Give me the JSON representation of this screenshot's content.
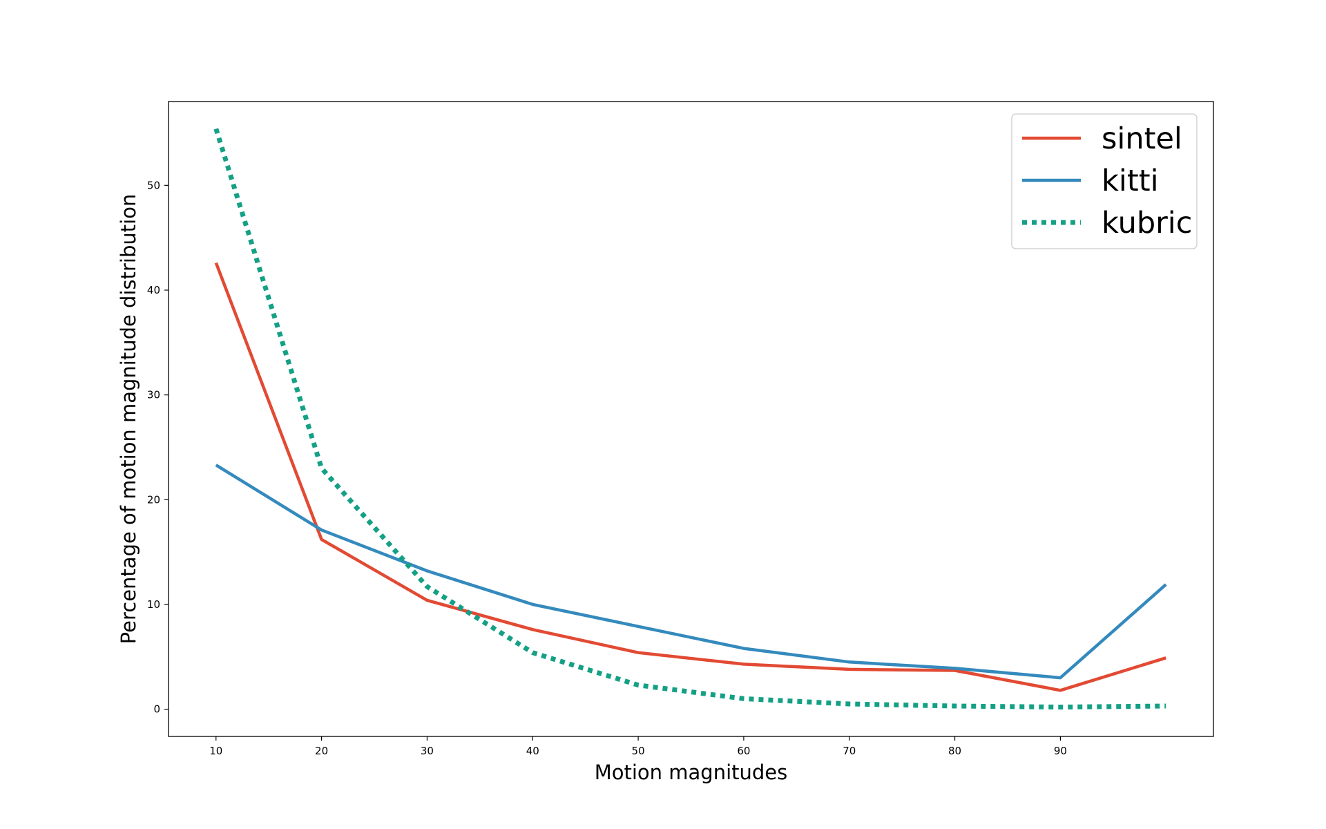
{
  "chart_data": {
    "type": "line",
    "title": "",
    "xlabel": "Motion magnitudes",
    "ylabel": "Percentage of motion magnitude distribution",
    "x": [
      10,
      20,
      30,
      40,
      50,
      60,
      70,
      80,
      90,
      100
    ],
    "x_ticks": [
      10,
      20,
      30,
      40,
      50,
      60,
      70,
      80,
      90
    ],
    "y_ticks": [
      0,
      10,
      20,
      30,
      40,
      50
    ],
    "xlim": [
      5.5,
      104.5
    ],
    "ylim": [
      -2.6,
      58.0
    ],
    "grid": false,
    "legend_position": "top-right",
    "series": [
      {
        "name": "sintel",
        "color": "#e24a33",
        "style": "solid",
        "values": [
          42.6,
          16.2,
          10.4,
          7.6,
          5.4,
          4.3,
          3.8,
          3.7,
          1.8,
          4.9
        ]
      },
      {
        "name": "kitti",
        "color": "#348abd",
        "style": "solid",
        "values": [
          23.3,
          17.1,
          13.2,
          10.0,
          7.9,
          5.8,
          4.5,
          3.9,
          3.0,
          11.9
        ]
      },
      {
        "name": "kubric",
        "color": "#14a085",
        "style": "dotted",
        "values": [
          55.4,
          23.0,
          11.7,
          5.4,
          2.3,
          1.0,
          0.5,
          0.3,
          0.2,
          0.3
        ]
      }
    ]
  }
}
